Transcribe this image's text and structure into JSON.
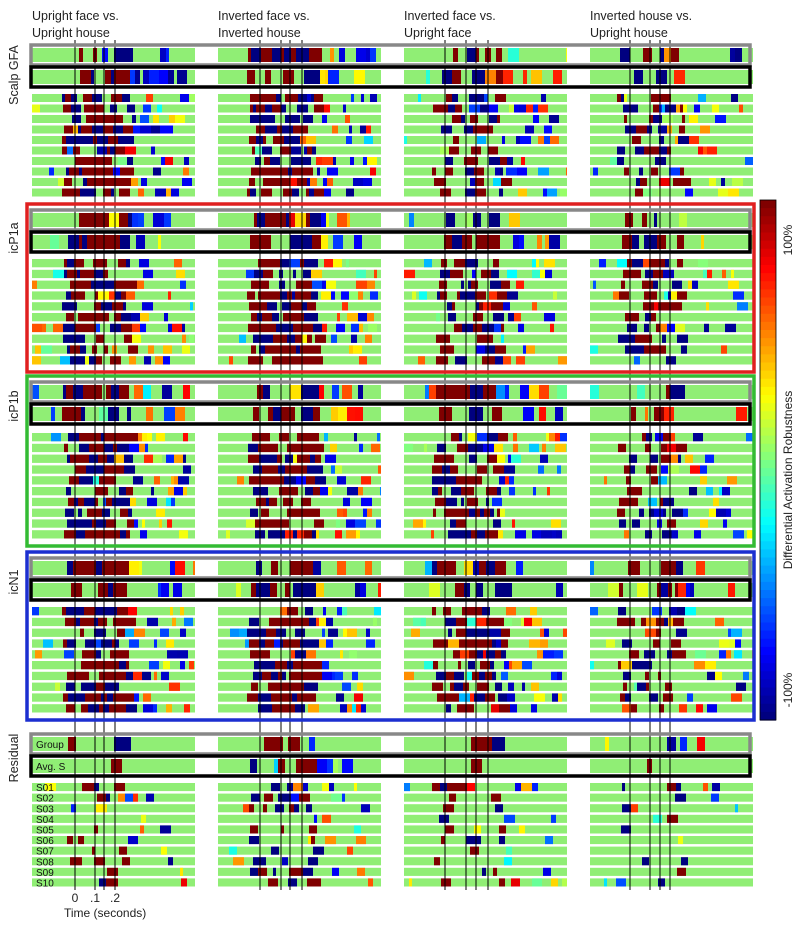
{
  "chart_data": {
    "type": "heatmap",
    "conditions": [
      "Upright face vs.\nUpright house",
      "Inverted face vs.\nInverted house",
      "Inverted face vs.\nUpright face",
      "Inverted house vs.\nUpright house"
    ],
    "rows": [
      {
        "label": "Scalp GFA",
        "color": ""
      },
      {
        "label": "icP1a",
        "color": "#e02020"
      },
      {
        "label": "icP1b",
        "color": "#33bb33"
      },
      {
        "label": "icN1",
        "color": "#1c2fd0"
      },
      {
        "label": "Residual",
        "color": ""
      }
    ],
    "row_tracks": {
      "group": "Group",
      "average": "Avg. S",
      "subjects": [
        "S01",
        "S02",
        "S03",
        "S04",
        "S05",
        "S06",
        "S07",
        "S08",
        "S09",
        "S10"
      ]
    },
    "x_axis": {
      "label": "Time (seconds)",
      "ticks": [
        "0",
        ".1",
        ".2"
      ],
      "tick_values": [
        0,
        0.1,
        0.2
      ]
    },
    "colorbar": {
      "label": "Differential Activation Robustness",
      "max_label": "100%",
      "min_label": "-100%",
      "range": [
        -100,
        100
      ],
      "colormap": "jet"
    }
  },
  "colors": {
    "group_box": "#888888",
    "avg_box": "#000000",
    "baseline": "#90ee75"
  }
}
